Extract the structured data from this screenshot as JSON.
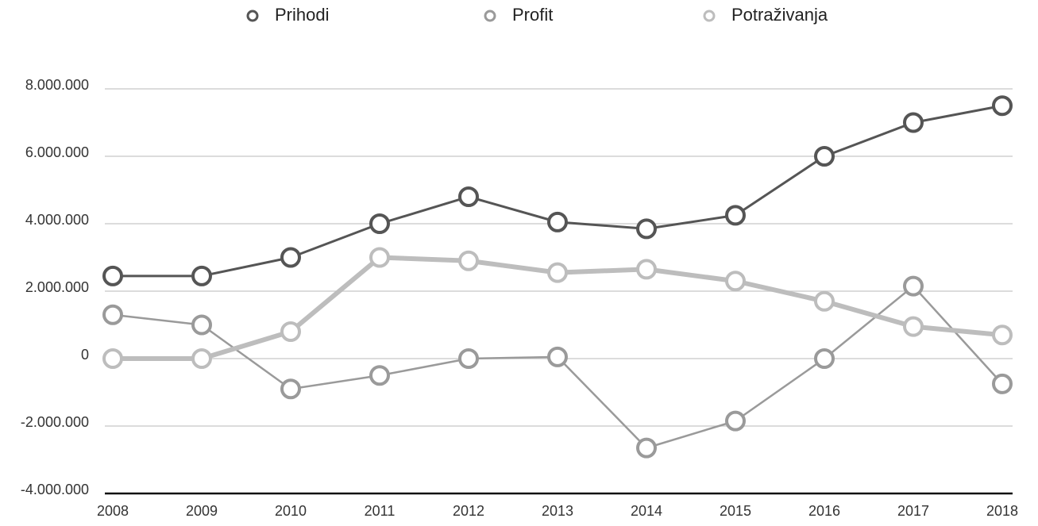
{
  "chart_data": {
    "type": "line",
    "categories": [
      "2008",
      "2009",
      "2010",
      "2011",
      "2012",
      "2013",
      "2014",
      "2015",
      "2016",
      "2017",
      "2018"
    ],
    "series": [
      {
        "name": "Prihodi",
        "color": "#555555",
        "values": [
          2450000,
          2450000,
          3000000,
          4000000,
          4800000,
          4050000,
          3850000,
          4250000,
          6000000,
          7000000,
          7500000
        ]
      },
      {
        "name": "Profit",
        "color": "#9a9a9a",
        "values": [
          1300000,
          1000000,
          -900000,
          -500000,
          0,
          50000,
          -2650000,
          -1850000,
          0,
          2150000,
          -750000
        ]
      },
      {
        "name": "Potraživanja",
        "color": "#bdbdbd",
        "values": [
          0,
          0,
          800000,
          3000000,
          2900000,
          2550000,
          2650000,
          2300000,
          1700000,
          950000,
          700000
        ]
      }
    ],
    "ylim": [
      -4000000,
      8000000
    ],
    "yticks": [
      {
        "value": -4000000,
        "label": "-4.000.000"
      },
      {
        "value": -2000000,
        "label": "-2.000.000"
      },
      0,
      {
        "value": 2000000,
        "label": "2.000.000"
      },
      {
        "value": 4000000,
        "label": "4.000.000"
      },
      {
        "value": 6000000,
        "label": "6.000.000"
      },
      {
        "value": 8000000,
        "label": "8.000.000"
      }
    ],
    "grid": true,
    "legend": "top"
  }
}
